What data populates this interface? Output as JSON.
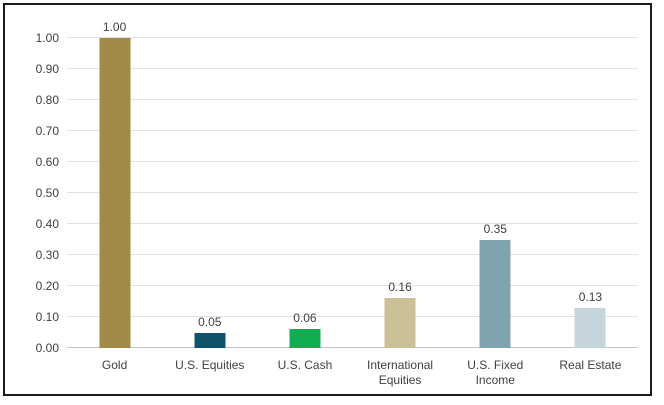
{
  "chart_data": {
    "type": "bar",
    "title": "",
    "xlabel": "",
    "ylabel": "",
    "categories": [
      "Gold",
      "U.S. Equities",
      "U.S. Cash",
      "International\nEquities",
      "U.S. Fixed\nIncome",
      "Real Estate"
    ],
    "category_slugs": [
      "gold",
      "us-equities",
      "us-cash",
      "international-equities",
      "us-fixed-income",
      "real-estate"
    ],
    "values": [
      1.0,
      0.05,
      0.06,
      0.16,
      0.35,
      0.13
    ],
    "value_labels": [
      "1.00",
      "0.05",
      "0.06",
      "0.16",
      "0.35",
      "0.13"
    ],
    "bar_colors": [
      "#A18A46",
      "#0F536B",
      "#0FAD4F",
      "#CBC098",
      "#80A3B0",
      "#C6D5DC"
    ],
    "ylim": [
      0,
      1
    ],
    "y_ticks": [
      {
        "value": 0.0,
        "label": "0.00"
      },
      {
        "value": 0.1,
        "label": "0.10"
      },
      {
        "value": 0.2,
        "label": "0.20"
      },
      {
        "value": 0.3,
        "label": "0.30"
      },
      {
        "value": 0.4,
        "label": "0.40"
      },
      {
        "value": 0.5,
        "label": "0.50"
      },
      {
        "value": 0.6,
        "label": "0.60"
      },
      {
        "value": 0.7,
        "label": "0.70"
      },
      {
        "value": 0.8,
        "label": "0.80"
      },
      {
        "value": 0.9,
        "label": "0.90"
      },
      {
        "value": 1.0,
        "label": "1.00"
      }
    ],
    "grid": true,
    "legend": "none",
    "colors": {
      "gridline": "#e2e2e2",
      "axis_line": "#c4c4c4",
      "text": "#3f3f3f",
      "frame_border": "#1c1c1c",
      "background": "#ffffff"
    }
  }
}
